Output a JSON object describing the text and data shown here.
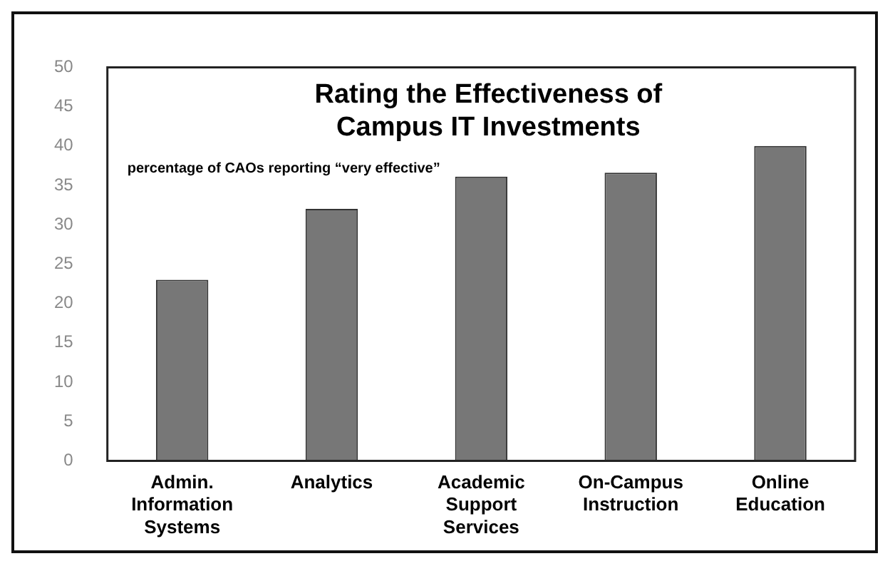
{
  "chart_data": {
    "type": "bar",
    "title": "Rating the Effectiveness of Campus IT Investments",
    "subtitle": "percentage of CAOs reporting “very effective”",
    "categories": [
      "Admin. Information Systems",
      "Analytics",
      "Academic Support Services",
      "On-Campus Instruction",
      "Online Education"
    ],
    "values": [
      23,
      32,
      36.1,
      36.6,
      40
    ],
    "color": "#777777",
    "ylim": [
      0,
      50
    ],
    "yticks": [
      0,
      5,
      10,
      15,
      20,
      25,
      30,
      35,
      40,
      45,
      50
    ],
    "grid": false,
    "legend": false
  }
}
